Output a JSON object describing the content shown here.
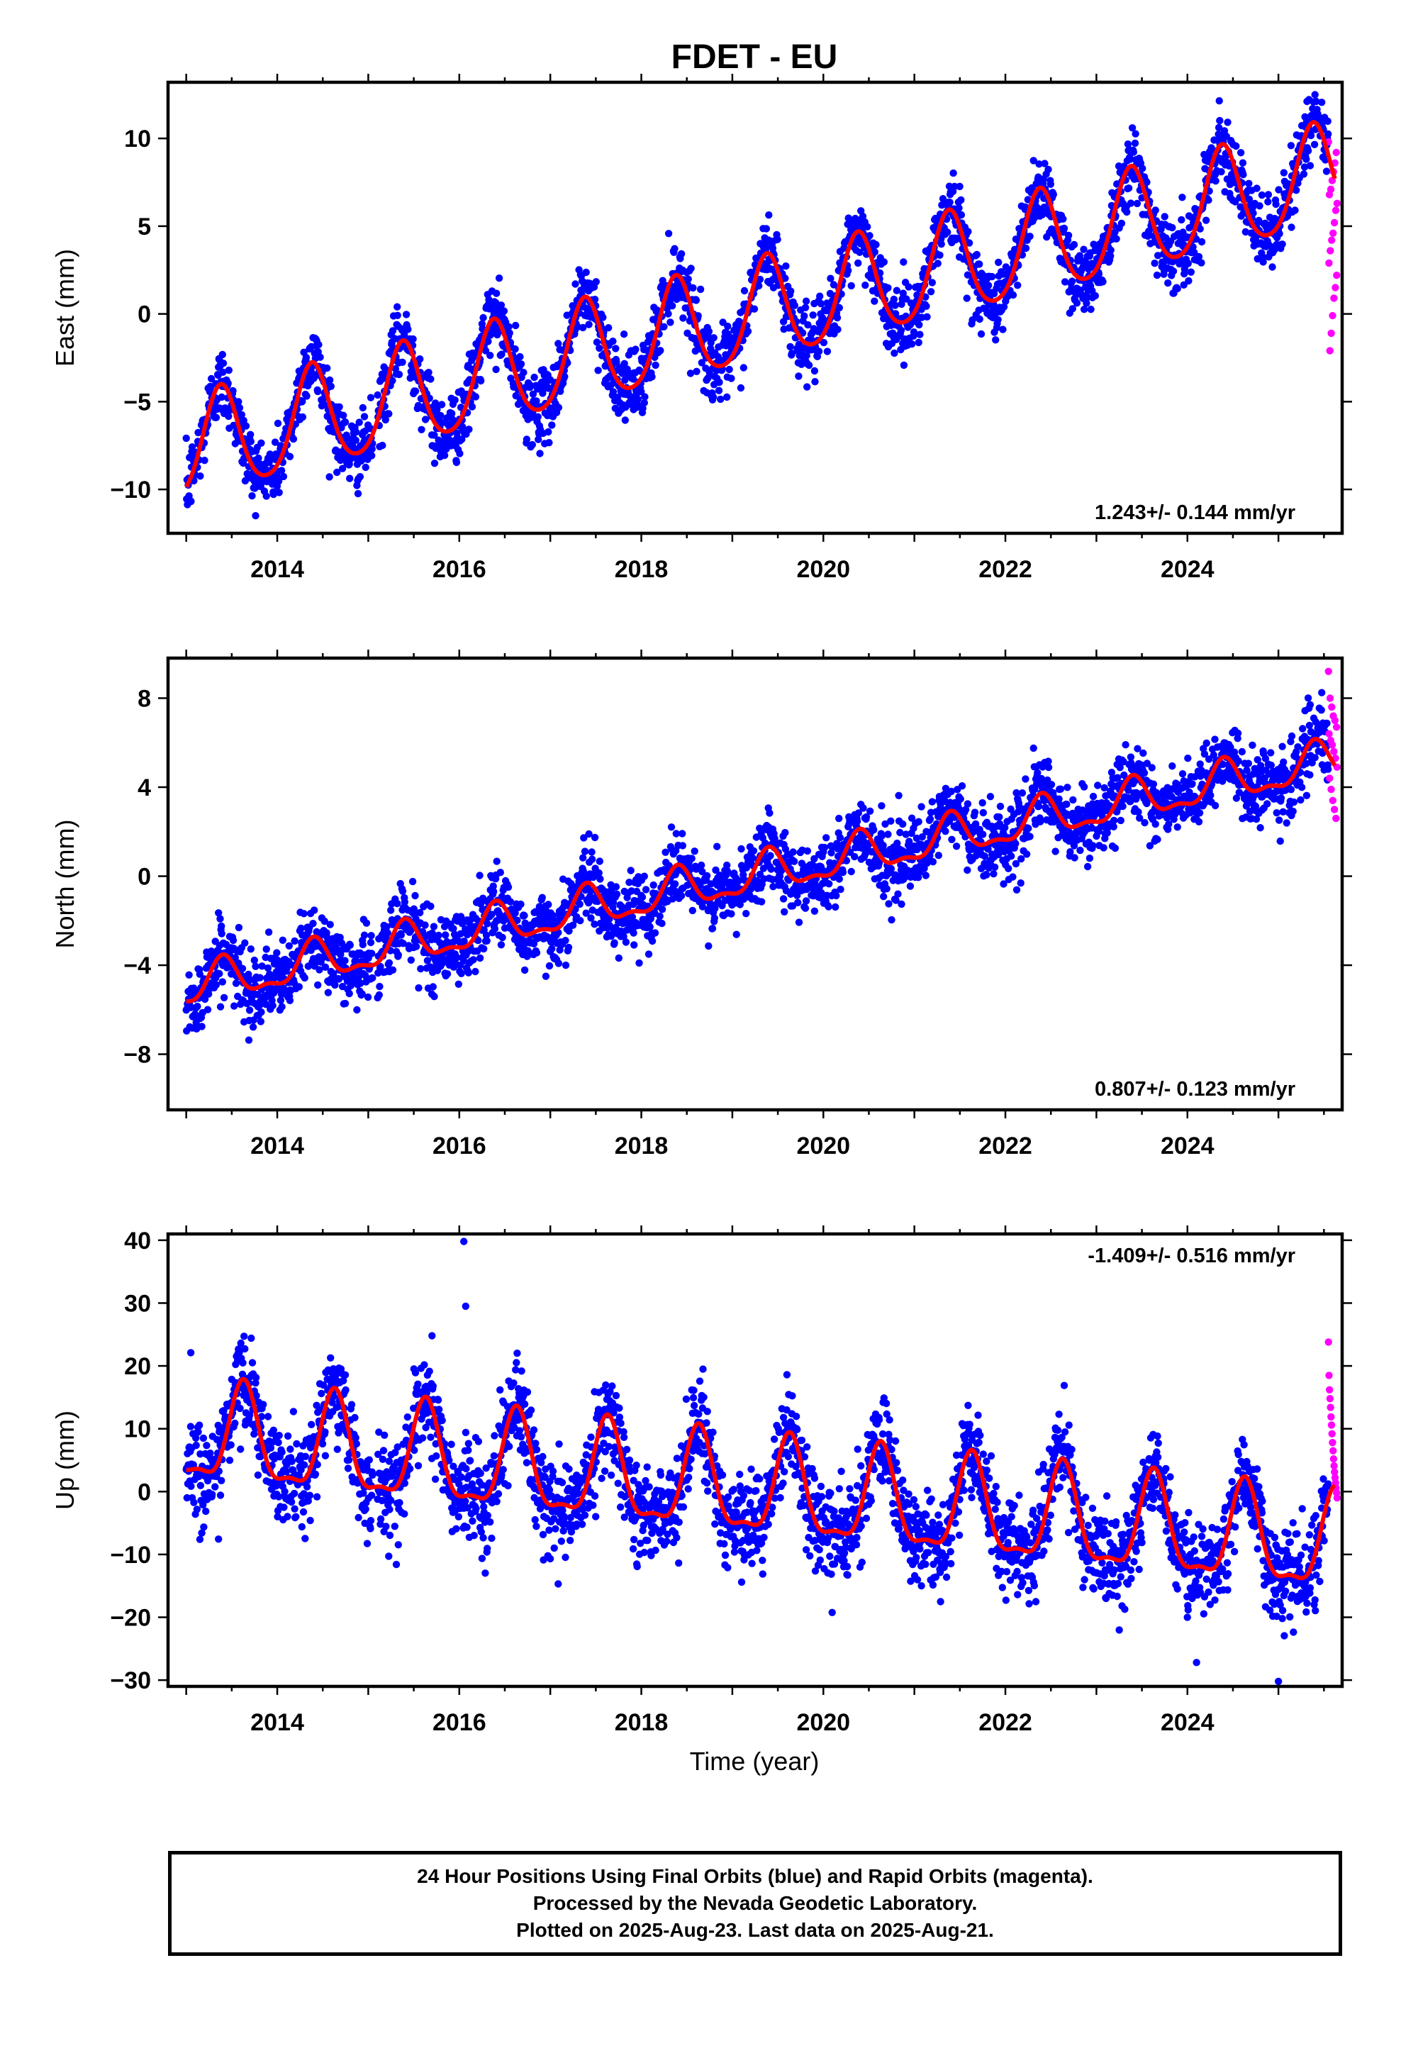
{
  "title": "FDET - EU",
  "xlabel": "Time (year)",
  "colors": {
    "final": "#0000ff",
    "rapid": "#ff00ff",
    "model": "#ff0000"
  },
  "footer": {
    "line1": "24 Hour Positions Using Final Orbits (blue) and Rapid Orbits (magenta).",
    "line2": "Processed by the Nevada Geodetic Laboratory.",
    "line3": "Plotted on 2025-Aug-23. Last data on 2025-Aug-21."
  },
  "chart_data": [
    {
      "type": "scatter",
      "component": "east",
      "ylabel": "East (mm)",
      "rate_label": "1.243+/- 0.144 mm/yr",
      "xlim": [
        2012.8,
        2025.7
      ],
      "ylim": [
        -12.5,
        13.2
      ],
      "yticks": [
        -10,
        -5,
        0,
        5,
        10
      ],
      "xticks": [
        2014,
        2016,
        2018,
        2020,
        2022,
        2024
      ],
      "model": {
        "rate": 1.243,
        "offset": 10.8,
        "annual_amp": 2.9,
        "annual_phase_year": 2013.38,
        "semiannual_amp": 0.4
      },
      "scatter_sd": 1.0,
      "rapid": {
        "x_start": 2025.55,
        "x_end": 2025.65,
        "y": [
          9.8,
          9.2,
          8.6,
          8.1,
          7.6,
          7.1,
          6.8,
          6.3,
          5.9,
          5.2,
          4.6,
          4.2,
          3.6,
          2.9,
          2.2,
          1.5,
          0.9,
          -0.1,
          -1.1,
          -2.1
        ]
      }
    },
    {
      "type": "scatter",
      "component": "north",
      "ylabel": "North (mm)",
      "rate_label": "0.807+/- 0.123 mm/yr",
      "xlim": [
        2012.8,
        2025.7
      ],
      "ylim": [
        -10.5,
        9.8
      ],
      "yticks": [
        -8,
        -4,
        0,
        4,
        8
      ],
      "xticks": [
        2014,
        2016,
        2018,
        2020,
        2022,
        2024
      ],
      "model": {
        "rate": 0.807,
        "offset": 3.6,
        "annual_amp": 0.85,
        "annual_phase_year": 2013.4,
        "semiannual_amp": 0.35
      },
      "scatter_sd": 0.8,
      "rapid": {
        "x_start": 2025.55,
        "x_end": 2025.65,
        "y": [
          9.2,
          8.0,
          7.6,
          7.2,
          7.0,
          6.7,
          6.4,
          6.1,
          5.9,
          5.6,
          5.3,
          4.9,
          4.4,
          3.9,
          3.4,
          3.0,
          2.6
        ]
      }
    },
    {
      "type": "scatter",
      "component": "up",
      "ylabel": "Up (mm)",
      "rate_label": "-1.409+/- 0.516 mm/yr",
      "xlim": [
        2012.8,
        2025.7
      ],
      "ylim": [
        -31,
        41
      ],
      "yticks": [
        -30,
        -20,
        -10,
        0,
        10,
        20,
        30,
        40
      ],
      "xticks": [
        2014,
        2016,
        2018,
        2020,
        2022,
        2024
      ],
      "model": {
        "rate": -1.409,
        "offset": 0.0,
        "annual_amp": 7.5,
        "annual_phase_year": 2013.63,
        "semiannual_amp": 2.5
      },
      "scatter_sd": 3.6,
      "outliers": [
        [
          2016.05,
          39.8
        ],
        [
          2016.07,
          29.5
        ],
        [
          2015.7,
          24.8
        ],
        [
          2013.05,
          22.1
        ],
        [
          2019.6,
          18.6
        ],
        [
          2025.0,
          -30.2
        ],
        [
          2024.1,
          -27.2
        ],
        [
          2013.15,
          -7.6
        ]
      ],
      "rapid": {
        "x_start": 2025.55,
        "x_end": 2025.65,
        "y": [
          23.8,
          18.5,
          16.2,
          14.8,
          13.4,
          11.9,
          10.6,
          9.2,
          7.8,
          6.5,
          5.2,
          4.1,
          3.1,
          2.2,
          1.4,
          0.6,
          -0.2,
          -1.0
        ]
      }
    }
  ]
}
